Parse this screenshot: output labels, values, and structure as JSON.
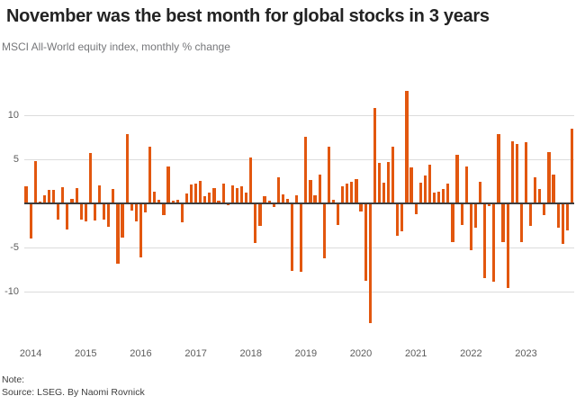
{
  "header": {
    "title": "November was the best month for global stocks in 3 years",
    "subtitle": "MSCI All-World equity index, monthly % change"
  },
  "footer": {
    "note": "Note:",
    "source": "Source: LSEG. By Naomi Rovnick"
  },
  "chart_data": {
    "type": "bar",
    "title": "November was the best month for global stocks in 3 years",
    "subtitle": "MSCI All-World equity index, monthly % change",
    "xlabel": "",
    "ylabel": "monthly % change",
    "bar_color": "#e2570f",
    "grid": true,
    "legend_position": "none",
    "yticks": [
      10,
      5,
      -5,
      -10
    ],
    "ylim": [
      -14,
      13
    ],
    "year_labels": [
      "2014",
      "2015",
      "2016",
      "2017",
      "2018",
      "2019",
      "2020",
      "2021",
      "2022",
      "2023"
    ],
    "x": [
      "2013-12",
      "2014-01",
      "2014-02",
      "2014-03",
      "2014-04",
      "2014-05",
      "2014-06",
      "2014-07",
      "2014-08",
      "2014-09",
      "2014-10",
      "2014-11",
      "2014-12",
      "2015-01",
      "2015-02",
      "2015-03",
      "2015-04",
      "2015-05",
      "2015-06",
      "2015-07",
      "2015-08",
      "2015-09",
      "2015-10",
      "2015-11",
      "2015-12",
      "2016-01",
      "2016-02",
      "2016-03",
      "2016-04",
      "2016-05",
      "2016-06",
      "2016-07",
      "2016-08",
      "2016-09",
      "2016-10",
      "2016-11",
      "2016-12",
      "2017-01",
      "2017-02",
      "2017-03",
      "2017-04",
      "2017-05",
      "2017-06",
      "2017-07",
      "2017-08",
      "2017-09",
      "2017-10",
      "2017-11",
      "2017-12",
      "2018-01",
      "2018-02",
      "2018-03",
      "2018-04",
      "2018-05",
      "2018-06",
      "2018-07",
      "2018-08",
      "2018-09",
      "2018-10",
      "2018-11",
      "2018-12",
      "2019-01",
      "2019-02",
      "2019-03",
      "2019-04",
      "2019-05",
      "2019-06",
      "2019-07",
      "2019-08",
      "2019-09",
      "2019-10",
      "2019-11",
      "2019-12",
      "2020-01",
      "2020-02",
      "2020-03",
      "2020-04",
      "2020-05",
      "2020-06",
      "2020-07",
      "2020-08",
      "2020-09",
      "2020-10",
      "2020-11",
      "2020-12",
      "2021-01",
      "2021-02",
      "2021-03",
      "2021-04",
      "2021-05",
      "2021-06",
      "2021-07",
      "2021-08",
      "2021-09",
      "2021-10",
      "2021-11",
      "2021-12",
      "2022-01",
      "2022-02",
      "2022-03",
      "2022-04",
      "2022-05",
      "2022-06",
      "2022-07",
      "2022-08",
      "2022-09",
      "2022-10",
      "2022-11",
      "2022-12",
      "2023-01",
      "2023-02",
      "2023-03",
      "2023-04",
      "2023-05",
      "2023-06",
      "2023-07",
      "2023-08",
      "2023-09",
      "2023-10",
      "2023-11"
    ],
    "values": [
      2.0,
      -3.9,
      4.8,
      0.2,
      0.9,
      1.6,
      1.6,
      -1.7,
      1.9,
      -2.9,
      0.5,
      1.8,
      -1.7,
      -1.9,
      5.7,
      -1.8,
      2.1,
      -1.7,
      -2.5,
      1.7,
      -6.7,
      -3.8,
      7.9,
      -0.7,
      -1.9,
      -6.0,
      -0.9,
      6.5,
      1.4,
      0.4,
      -1.2,
      4.2,
      0.3,
      0.4,
      -2.0,
      1.2,
      2.2,
      2.3,
      2.6,
      0.8,
      1.3,
      1.8,
      0.3,
      2.3,
      -0.1,
      2.1,
      1.8,
      2.0,
      1.3,
      5.2,
      -4.4,
      -2.4,
      0.8,
      0.3,
      -0.3,
      3.0,
      1.1,
      0.5,
      -7.5,
      1.0,
      -7.7,
      7.6,
      2.7,
      1.0,
      3.3,
      -6.1,
      6.5,
      0.4,
      -2.3,
      2.0,
      2.3,
      2.5,
      2.8,
      -0.8,
      -8.7,
      -13.5,
      10.9,
      4.6,
      2.4,
      4.7,
      6.5,
      -3.6,
      -3.1,
      12.8,
      4.1,
      -1.1,
      2.4,
      3.2,
      4.4,
      1.3,
      1.4,
      1.7,
      2.3,
      -4.3,
      5.5,
      -2.3,
      4.2,
      -5.2,
      -2.6,
      2.5,
      -8.4,
      -0.2,
      -8.8,
      7.9,
      -4.3,
      -9.5,
      7.1,
      6.8,
      -4.3,
      7.0,
      -2.4,
      3.0,
      1.7,
      -1.2,
      5.9,
      3.3,
      -2.6,
      -4.5,
      -3.0,
      8.5
    ]
  }
}
